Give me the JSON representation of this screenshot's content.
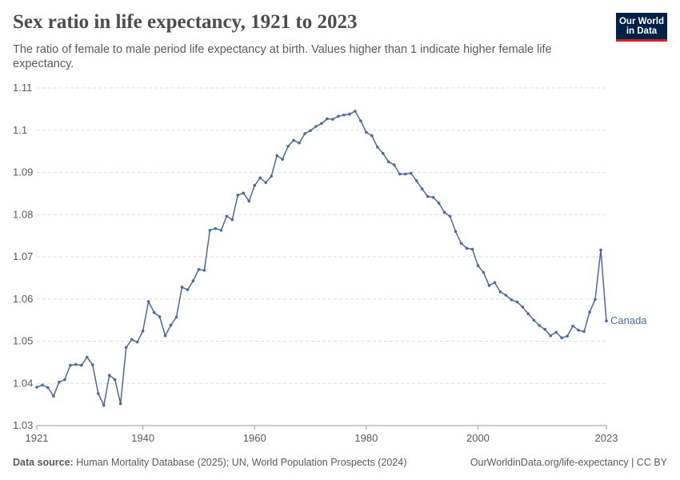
{
  "header": {
    "title": "Sex ratio in life expectancy, 1921 to 2023",
    "subtitle": "The ratio of female to male period life expectancy at birth. Values higher than 1 indicate higher female life expectancy."
  },
  "logo": {
    "line1": "Our World",
    "line2": "in Data"
  },
  "footer": {
    "source_label": "Data source:",
    "source_text": "Human Mortality Database (2025); UN, World Population Prospects (2024)",
    "link_text": "OurWorldinData.org/life-expectancy | CC BY"
  },
  "colors": {
    "series": "#4c6a9c",
    "grid": "#dddddd",
    "axis": "#666666",
    "text": "#5b5b5b"
  },
  "chart_data": {
    "type": "line",
    "title": "Sex ratio in life expectancy, 1921 to 2023",
    "xlim": [
      1921,
      2023
    ],
    "ylim": [
      1.03,
      1.11
    ],
    "x_ticks": [
      {
        "value": 1921,
        "label": "1921"
      },
      {
        "value": 1940,
        "label": "1940"
      },
      {
        "value": 1960,
        "label": "1960"
      },
      {
        "value": 1980,
        "label": "1980"
      },
      {
        "value": 2000,
        "label": "2000"
      },
      {
        "value": 2023,
        "label": "2023"
      }
    ],
    "y_ticks": [
      {
        "value": 1.03,
        "label": "1.03"
      },
      {
        "value": 1.04,
        "label": "1.04"
      },
      {
        "value": 1.05,
        "label": "1.05"
      },
      {
        "value": 1.06,
        "label": "1.06"
      },
      {
        "value": 1.07,
        "label": "1.07"
      },
      {
        "value": 1.08,
        "label": "1.08"
      },
      {
        "value": 1.09,
        "label": "1.09"
      },
      {
        "value": 1.1,
        "label": "1.1"
      },
      {
        "value": 1.11,
        "label": "1.11"
      }
    ],
    "grid": true,
    "series": [
      {
        "name": "Canada",
        "x": [
          1921,
          1922,
          1923,
          1924,
          1925,
          1926,
          1927,
          1928,
          1929,
          1930,
          1931,
          1932,
          1933,
          1934,
          1935,
          1936,
          1937,
          1938,
          1939,
          1940,
          1941,
          1942,
          1943,
          1944,
          1945,
          1946,
          1947,
          1948,
          1949,
          1950,
          1951,
          1952,
          1953,
          1954,
          1955,
          1956,
          1957,
          1958,
          1959,
          1960,
          1961,
          1962,
          1963,
          1964,
          1965,
          1966,
          1967,
          1968,
          1969,
          1970,
          1971,
          1972,
          1973,
          1974,
          1975,
          1976,
          1977,
          1978,
          1979,
          1980,
          1981,
          1982,
          1983,
          1984,
          1985,
          1986,
          1987,
          1988,
          1989,
          1990,
          1991,
          1992,
          1993,
          1994,
          1995,
          1996,
          1997,
          1998,
          1999,
          2000,
          2001,
          2002,
          2003,
          2004,
          2005,
          2006,
          2007,
          2008,
          2009,
          2010,
          2011,
          2012,
          2013,
          2014,
          2015,
          2016,
          2017,
          2018,
          2019,
          2020,
          2021,
          2022,
          2023
        ],
        "y": [
          1.0391,
          1.0396,
          1.039,
          1.037,
          1.0403,
          1.0409,
          1.0443,
          1.0445,
          1.0443,
          1.0462,
          1.0444,
          1.0376,
          1.0348,
          1.0419,
          1.0409,
          1.0352,
          1.0485,
          1.0504,
          1.0498,
          1.0524,
          1.0594,
          1.0568,
          1.0558,
          1.0513,
          1.0538,
          1.0557,
          1.0628,
          1.0622,
          1.0643,
          1.067,
          1.0668,
          1.0763,
          1.0767,
          1.0763,
          1.0796,
          1.0788,
          1.0846,
          1.0851,
          1.0832,
          1.0869,
          1.0887,
          1.0876,
          1.0891,
          1.094,
          1.0931,
          1.0962,
          1.0976,
          1.097,
          1.0992,
          1.0999,
          1.1009,
          1.1016,
          1.1027,
          1.1026,
          1.1033,
          1.1036,
          1.1038,
          1.1045,
          1.1022,
          1.0995,
          1.0987,
          1.096,
          1.0945,
          1.0925,
          1.0918,
          1.0896,
          1.0896,
          1.0898,
          1.088,
          1.0861,
          1.0843,
          1.0841,
          1.0827,
          1.0805,
          1.0796,
          1.076,
          1.0732,
          1.072,
          1.0718,
          1.0679,
          1.0663,
          1.0632,
          1.0639,
          1.0617,
          1.0609,
          1.0598,
          1.0593,
          1.0581,
          1.0565,
          1.055,
          1.0537,
          1.0528,
          1.0513,
          1.0521,
          1.0508,
          1.0512,
          1.0536,
          1.0526,
          1.0523,
          1.0569,
          1.0599,
          1.0716,
          1.0548
        ]
      }
    ]
  }
}
